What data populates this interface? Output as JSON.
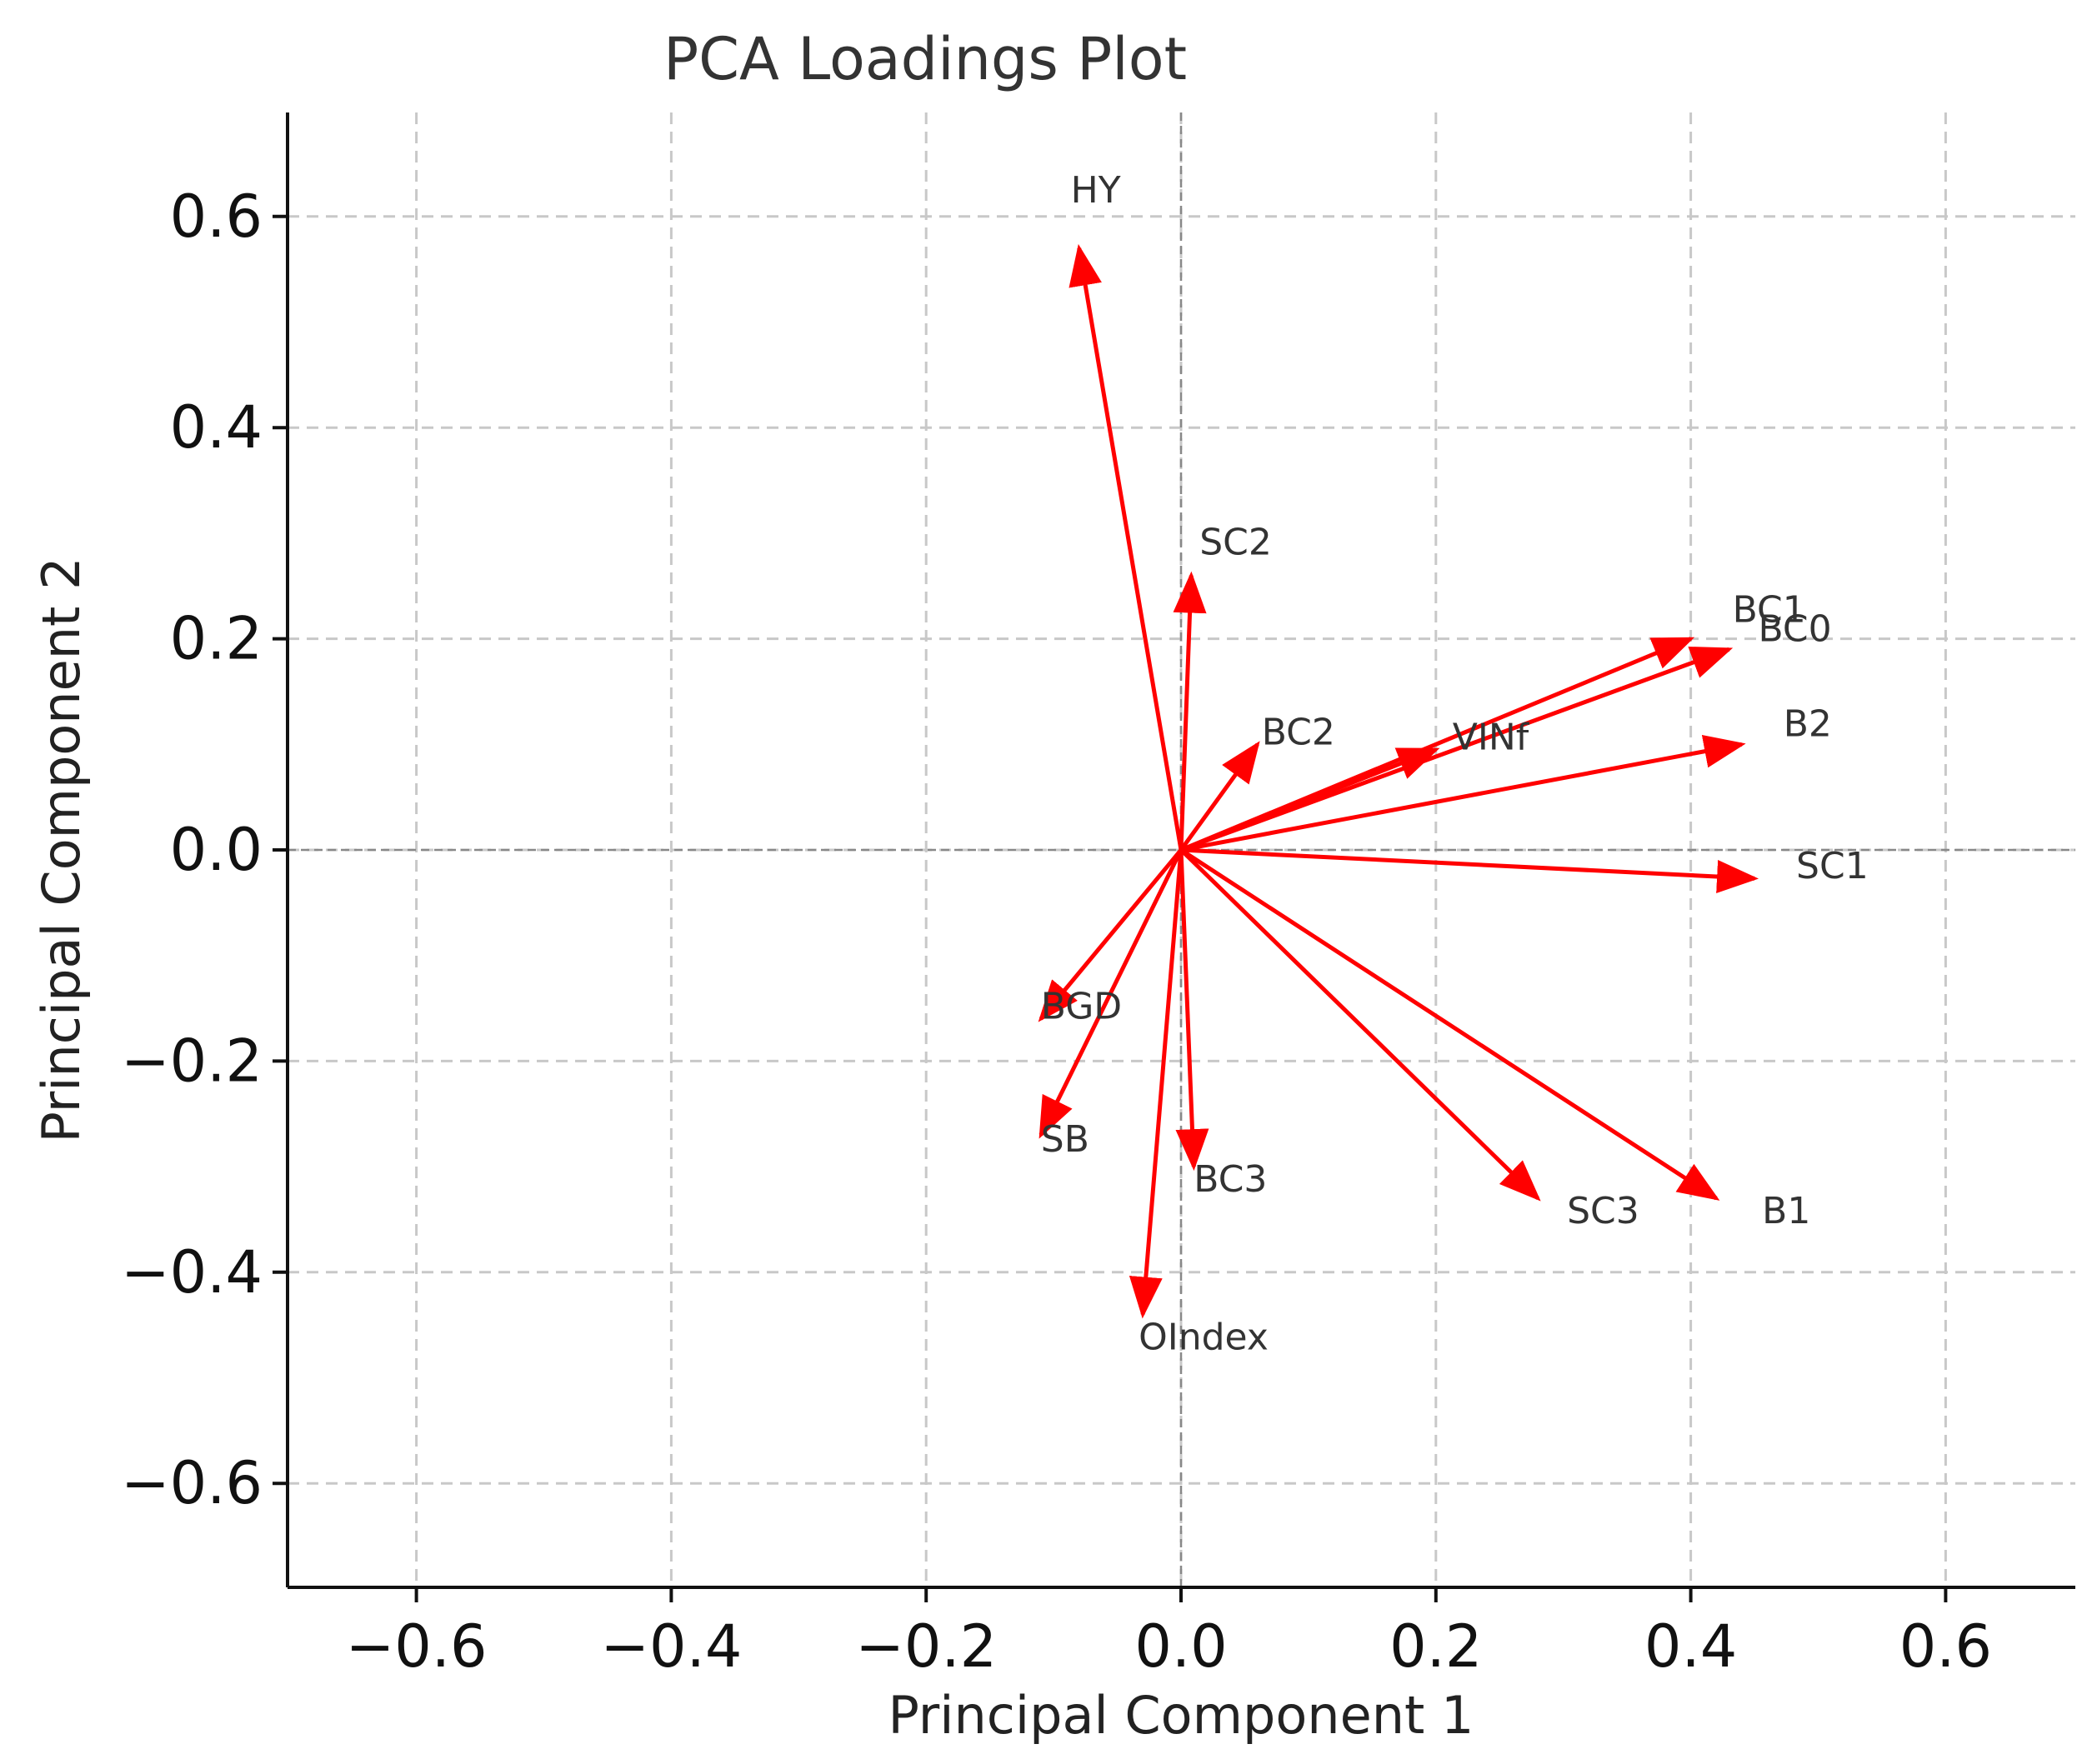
{
  "chart_data": {
    "type": "scatter",
    "title": "PCA Loadings Plot",
    "xlabel": "Principal Component 1",
    "ylabel": "Principal Component 2",
    "xlim": [
      -0.7,
      0.7
    ],
    "ylim": [
      -0.7,
      0.7
    ],
    "grid": true,
    "arrow_color": "#ff0000",
    "xticks": [
      -0.6,
      -0.4,
      -0.2,
      0.0,
      0.2,
      0.4,
      0.6
    ],
    "xtick_labels": [
      "−0.6",
      "−0.4",
      "−0.2",
      "0.0",
      "0.2",
      "0.4",
      "0.6"
    ],
    "yticks": [
      0.6,
      0.4,
      0.2,
      0.0,
      -0.2,
      -0.4,
      -0.6
    ],
    "ytick_labels": [
      "0.6",
      "0.4",
      "0.2",
      "0.0",
      "−0.2",
      "−0.4",
      "−0.6"
    ],
    "loadings": [
      {
        "label": "HY",
        "x": -0.08,
        "y": 0.57
      },
      {
        "label": "SC2",
        "x": 0.008,
        "y": 0.26
      },
      {
        "label": "BC1",
        "x": 0.4,
        "y": 0.2
      },
      {
        "label": "BC0",
        "x": 0.43,
        "y": 0.19
      },
      {
        "label": "VINf",
        "x": 0.2,
        "y": 0.095
      },
      {
        "label": "B2",
        "x": 0.44,
        "y": 0.1
      },
      {
        "label": "BC2",
        "x": 0.06,
        "y": 0.1
      },
      {
        "label": "SC1",
        "x": 0.45,
        "y": -0.027
      },
      {
        "label": "BGD",
        "x": -0.11,
        "y": -0.16
      },
      {
        "label": "SB",
        "x": -0.11,
        "y": -0.27
      },
      {
        "label": "BC3",
        "x": 0.01,
        "y": -0.3
      },
      {
        "label": "OIndex",
        "x": -0.03,
        "y": -0.44
      },
      {
        "label": "SC3",
        "x": 0.28,
        "y": -0.33
      },
      {
        "label": "B1",
        "x": 0.42,
        "y": -0.33
      }
    ]
  }
}
